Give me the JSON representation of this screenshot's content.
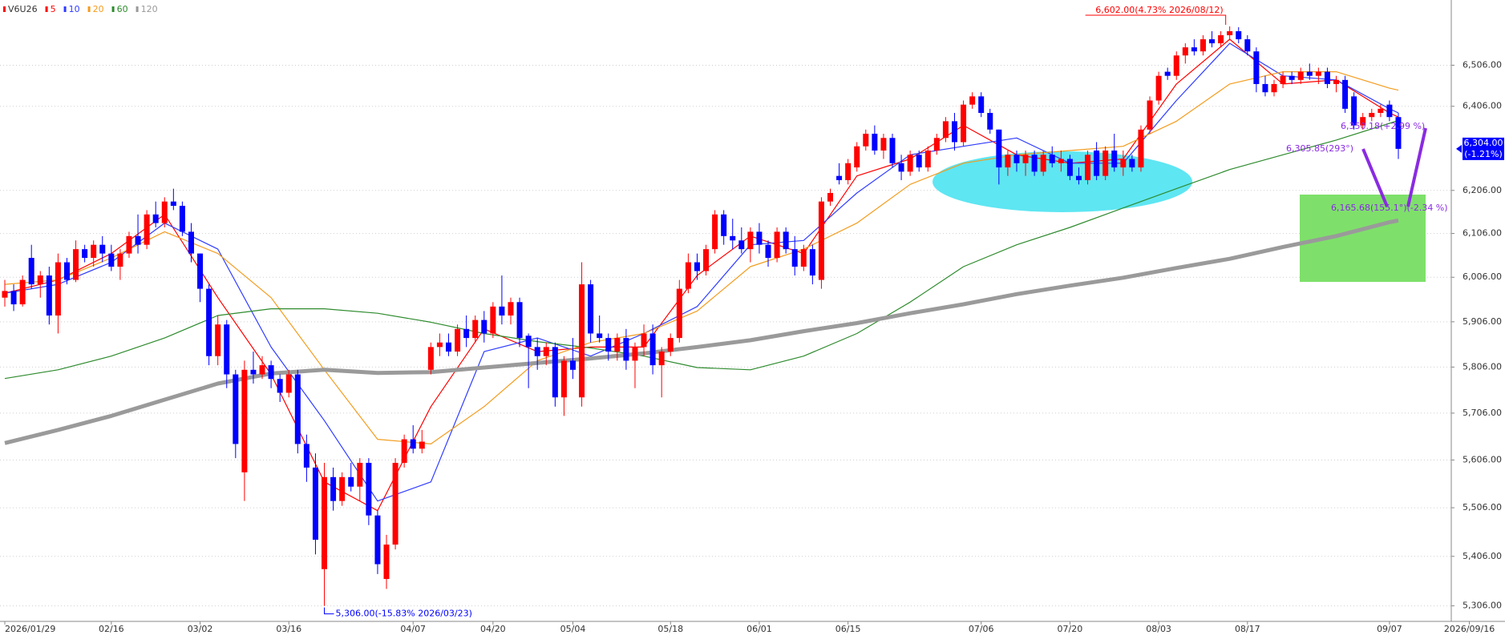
{
  "chart_data": {
    "type": "candlestick",
    "title": "V6U26",
    "title_color": "#ff0000",
    "log_scale": true,
    "grid": true,
    "up_color": "#ff0000",
    "down_color": "#0000ff",
    "ylim": [
      5275,
      6668
    ],
    "yticks": [
      {
        "value": 5306,
        "label": "5,306.00"
      },
      {
        "value": 5406,
        "label": "5,406.00"
      },
      {
        "value": 5506,
        "label": "5,506.00"
      },
      {
        "value": 5606,
        "label": "5,606.00"
      },
      {
        "value": 5706,
        "label": "5,706.00"
      },
      {
        "value": 5806,
        "label": "5,806.00"
      },
      {
        "value": 5906,
        "label": "5,906.00"
      },
      {
        "value": 6006,
        "label": "6,006.00"
      },
      {
        "value": 6106,
        "label": "6,106.00"
      },
      {
        "value": 6206,
        "label": "6,206.00"
      },
      {
        "value": 6406,
        "label": "6,406.00"
      },
      {
        "value": 6506,
        "label": "6,506.00"
      }
    ],
    "categories": [
      "2026/01/29",
      null,
      null,
      null,
      null,
      null,
      null,
      null,
      null,
      null,
      null,
      null,
      "02/16",
      null,
      null,
      null,
      null,
      null,
      null,
      null,
      null,
      null,
      "03/02",
      null,
      null,
      null,
      null,
      null,
      null,
      null,
      null,
      null,
      "03/16",
      null,
      null,
      null,
      null,
      null,
      null,
      null,
      null,
      null,
      null,
      null,
      null,
      null,
      "04/07",
      null,
      null,
      null,
      null,
      null,
      null,
      null,
      null,
      "04/20",
      null,
      null,
      null,
      null,
      null,
      null,
      null,
      null,
      "05/04",
      null,
      null,
      null,
      null,
      null,
      null,
      null,
      null,
      null,
      null,
      "05/18",
      null,
      null,
      null,
      null,
      null,
      null,
      null,
      null,
      null,
      "06/01",
      null,
      null,
      null,
      null,
      null,
      null,
      null,
      null,
      null,
      "06/15",
      null,
      null,
      null,
      null,
      null,
      null,
      null,
      null,
      null,
      null,
      null,
      null,
      null,
      null,
      "07/06",
      null,
      null,
      null,
      null,
      null,
      null,
      null,
      null,
      null,
      "07/20",
      null,
      null,
      null,
      null,
      null,
      null,
      null,
      null,
      null,
      "08/03",
      null,
      null,
      null,
      null,
      null,
      null,
      null,
      null,
      null,
      "08/17",
      null,
      null,
      null,
      null,
      null,
      null,
      null,
      null,
      null,
      null,
      null,
      null,
      null,
      null,
      null,
      "09/07",
      null,
      null,
      null,
      null,
      null,
      null,
      null,
      null,
      "2026/09/16"
    ],
    "open": [
      5960,
      5975,
      5945,
      6050,
      5990,
      6010,
      5920,
      6040,
      6000,
      6070,
      6050,
      6080,
      6060,
      6030,
      6060,
      6100,
      6080,
      6150,
      6130,
      6180,
      6170,
      6110,
      6060,
      5980,
      5830,
      5900,
      5790,
      5580,
      5800,
      5790,
      5810,
      5780,
      5750,
      5790,
      5640,
      5590,
      5380,
      5570,
      5520,
      5570,
      5550,
      5600,
      5490,
      5360,
      5430,
      5600,
      5650,
      5630,
      5800,
      5850,
      5860,
      5840,
      5890,
      5870,
      5910,
      5880,
      5940,
      5920,
      5950,
      5875,
      5850,
      5830,
      5850,
      5740,
      5820,
      5740,
      5990,
      5880,
      5870,
      5840,
      5870,
      5820,
      5850,
      5880,
      5810,
      5840,
      5870,
      5980,
      6040,
      6020,
      6070,
      6150,
      6100,
      6090,
      6070,
      6110,
      6080,
      6050,
      6110,
      6070,
      6030,
      6070,
      6000,
      6180,
      6240,
      6230,
      6260,
      6310,
      6340,
      6300,
      6330,
      6270,
      6250,
      6290,
      6260,
      6300,
      6330,
      6370,
      6320,
      6410,
      6430,
      6390,
      6350,
      6260,
      6290,
      6270,
      6290,
      6250,
      6290,
      6270,
      6280,
      6240,
      6230,
      6300,
      6240,
      6300,
      6260,
      6280,
      6260,
      6350,
      6420,
      6490,
      6480,
      6530,
      6550,
      6540,
      6570,
      6560,
      6580,
      6590,
      6570,
      6540,
      6460,
      6440,
      6460,
      6480,
      6470,
      6490,
      6480,
      6490,
      6460,
      6470,
      6430,
      6360,
      6380,
      6390,
      6410,
      6380,
      null,
      null,
      null,
      null,
      null,
      null,
      null,
      null
    ],
    "high": [
      6000,
      5990,
      6010,
      6080,
      6020,
      6030,
      6060,
      6050,
      6090,
      6080,
      6090,
      6100,
      6080,
      6070,
      6110,
      6150,
      6160,
      6180,
      6190,
      6210,
      6180,
      6130,
      6060,
      5990,
      5920,
      5910,
      5800,
      5820,
      5840,
      5830,
      5820,
      5790,
      5800,
      5800,
      5660,
      5620,
      5600,
      5590,
      5580,
      5600,
      5610,
      5610,
      5500,
      5450,
      5610,
      5660,
      5680,
      5670,
      5860,
      5880,
      5880,
      5900,
      5920,
      5920,
      5930,
      5950,
      6010,
      5960,
      5960,
      5880,
      5870,
      5860,
      5860,
      5830,
      5870,
      6040,
      6000,
      5920,
      5880,
      5880,
      5890,
      5860,
      5900,
      5900,
      5850,
      5880,
      6000,
      6060,
      6060,
      6080,
      6160,
      6160,
      6140,
      6120,
      6120,
      6130,
      6090,
      6120,
      6120,
      6100,
      6080,
      6080,
      6190,
      6210,
      6270,
      6280,
      6320,
      6350,
      6360,
      6340,
      6340,
      6290,
      6300,
      6300,
      6310,
      6340,
      6380,
      6390,
      6420,
      6440,
      6440,
      6400,
      6350,
      6300,
      6300,
      6300,
      6300,
      6300,
      6310,
      6300,
      6290,
      6260,
      6300,
      6320,
      6310,
      6340,
      6300,
      6290,
      6360,
      6430,
      6490,
      6500,
      6540,
      6560,
      6570,
      6580,
      6590,
      6590,
      6602,
      6600,
      6580,
      6550,
      6480,
      6470,
      6490,
      6490,
      6500,
      6510,
      6500,
      6500,
      6480,
      6480,
      6440,
      6390,
      6400,
      6410,
      6420,
      6390,
      null,
      null,
      null,
      null,
      null,
      null,
      null,
      null
    ],
    "low": [
      5940,
      5930,
      5940,
      5980,
      5960,
      5900,
      5880,
      5990,
      5995,
      6040,
      6030,
      6040,
      6020,
      6000,
      6050,
      6060,
      6070,
      6120,
      6120,
      6160,
      6100,
      6040,
      5950,
      5810,
      5810,
      5760,
      5610,
      5520,
      5770,
      5780,
      5760,
      5730,
      5740,
      5620,
      5560,
      5410,
      5306,
      5500,
      5510,
      5540,
      5520,
      5470,
      5370,
      5340,
      5420,
      5590,
      5620,
      5620,
      5790,
      5830,
      5830,
      5830,
      5850,
      5860,
      5860,
      5870,
      5900,
      5900,
      5850,
      5760,
      5800,
      5810,
      5720,
      5700,
      5780,
      5720,
      5860,
      5860,
      5820,
      5820,
      5800,
      5760,
      5830,
      5790,
      5740,
      5830,
      5860,
      5970,
      6000,
      6010,
      6060,
      6080,
      6070,
      6060,
      6040,
      6060,
      6030,
      6040,
      6060,
      6010,
      6020,
      5990,
      5980,
      6170,
      6220,
      6220,
      6250,
      6300,
      6290,
      6280,
      6260,
      6230,
      6240,
      6250,
      6250,
      6290,
      6320,
      6300,
      6310,
      6400,
      6380,
      6340,
      6220,
      6240,
      6250,
      6240,
      6240,
      6240,
      6260,
      6250,
      6230,
      6220,
      6220,
      6230,
      6230,
      6250,
      6240,
      6250,
      6250,
      6340,
      6410,
      6470,
      6470,
      6510,
      6530,
      6530,
      6550,
      6550,
      6570,
      6560,
      6530,
      6440,
      6430,
      6430,
      6450,
      6460,
      6460,
      6470,
      6460,
      6450,
      6440,
      6390,
      6350,
      6350,
      6370,
      6380,
      6370,
      6280,
      null,
      null,
      null,
      null,
      null,
      null,
      null,
      null
    ],
    "close": [
      5975,
      5945,
      6000,
      5990,
      6010,
      5920,
      6040,
      6000,
      6070,
      6050,
      6080,
      6060,
      6030,
      6060,
      6100,
      6080,
      6150,
      6130,
      6180,
      6170,
      6110,
      6060,
      5980,
      5830,
      5900,
      5790,
      5640,
      5800,
      5790,
      5810,
      5780,
      5750,
      5790,
      5640,
      5590,
      5440,
      5570,
      5520,
      5570,
      5550,
      5600,
      5490,
      5390,
      5430,
      5600,
      5650,
      5630,
      5645,
      5850,
      5860,
      5840,
      5890,
      5870,
      5910,
      5880,
      5940,
      5920,
      5950,
      5870,
      5850,
      5830,
      5850,
      5740,
      5820,
      5800,
      5990,
      5880,
      5870,
      5840,
      5870,
      5820,
      5850,
      5880,
      5810,
      5840,
      5870,
      5980,
      6040,
      6020,
      6070,
      6150,
      6100,
      6090,
      6070,
      6110,
      6080,
      6050,
      6110,
      6070,
      6030,
      6070,
      6010,
      6180,
      6200,
      6230,
      6270,
      6310,
      6340,
      6300,
      6330,
      6270,
      6250,
      6290,
      6260,
      6300,
      6330,
      6370,
      6320,
      6410,
      6430,
      6390,
      6350,
      6260,
      6290,
      6270,
      6290,
      6250,
      6290,
      6270,
      6280,
      6240,
      6230,
      6290,
      6240,
      6300,
      6260,
      6280,
      6260,
      6350,
      6420,
      6480,
      6480,
      6530,
      6550,
      6540,
      6570,
      6560,
      6580,
      6590,
      6570,
      6540,
      6460,
      6440,
      6460,
      6480,
      6470,
      6490,
      6480,
      6490,
      6460,
      6470,
      6400,
      6360,
      6380,
      6390,
      6400,
      6380,
      6304,
      null,
      null,
      null,
      null,
      null,
      null,
      null,
      null
    ],
    "series": [
      {
        "name": "5",
        "color": "#ff0000",
        "line_width": 1.2,
        "x": [
          0,
          6,
          12,
          18,
          24,
          30,
          36,
          42,
          48,
          54,
          60,
          66,
          72,
          78,
          84,
          90,
          96,
          102,
          108,
          114,
          120,
          126,
          132,
          138,
          144,
          150,
          156,
          157
        ],
        "values": [
          5970,
          6000,
          6060,
          6150,
          5960,
          5790,
          5560,
          5500,
          5720,
          5890,
          5840,
          5850,
          5850,
          6010,
          6100,
          6060,
          6240,
          6280,
          6360,
          6290,
          6270,
          6280,
          6460,
          6570,
          6460,
          6470,
          6390,
          6380
        ]
      },
      {
        "name": "10",
        "color": "#2f3cff",
        "line_width": 1.2,
        "x": [
          0,
          6,
          12,
          18,
          24,
          30,
          36,
          42,
          48,
          54,
          60,
          66,
          72,
          78,
          84,
          90,
          96,
          102,
          108,
          114,
          120,
          126,
          132,
          138,
          144,
          150,
          156,
          157
        ],
        "values": [
          5970,
          5990,
          6040,
          6130,
          6070,
          5850,
          5690,
          5520,
          5560,
          5840,
          5870,
          5830,
          5880,
          5940,
          6080,
          6090,
          6200,
          6290,
          6310,
          6330,
          6270,
          6270,
          6420,
          6560,
          6480,
          6470,
          6400,
          6390
        ]
      },
      {
        "name": "20",
        "color": "#f39c1e",
        "line_width": 1.2,
        "x": [
          0,
          6,
          12,
          18,
          24,
          30,
          36,
          42,
          48,
          54,
          60,
          66,
          72,
          78,
          84,
          90,
          96,
          102,
          108,
          114,
          120,
          126,
          132,
          138,
          144,
          150,
          156,
          157
        ],
        "values": [
          5990,
          6000,
          6050,
          6110,
          6060,
          5960,
          5800,
          5650,
          5640,
          5720,
          5820,
          5860,
          5880,
          5930,
          6030,
          6070,
          6130,
          6220,
          6270,
          6290,
          6300,
          6310,
          6370,
          6460,
          6490,
          6490,
          6450,
          6445
        ]
      },
      {
        "name": "60",
        "color": "#2e8b2e",
        "line_width": 1.2,
        "x": [
          0,
          6,
          12,
          18,
          24,
          30,
          36,
          42,
          48,
          54,
          60,
          66,
          72,
          78,
          84,
          90,
          96,
          102,
          108,
          114,
          120,
          126,
          132,
          138,
          144,
          150,
          156,
          157
        ],
        "values": [
          5781,
          5800,
          5830,
          5870,
          5920,
          5935,
          5935,
          5925,
          5905,
          5880,
          5862,
          5848,
          5830,
          5805,
          5800,
          5830,
          5880,
          5950,
          6030,
          6080,
          6120,
          6165,
          6210,
          6255,
          6290,
          6325,
          6365,
          6372
        ]
      },
      {
        "name": "120",
        "color": "#9a9a9a",
        "line_width": 5,
        "x": [
          0,
          6,
          12,
          18,
          24,
          30,
          36,
          42,
          48,
          54,
          60,
          66,
          72,
          78,
          84,
          90,
          96,
          102,
          108,
          114,
          120,
          126,
          132,
          138,
          144,
          150,
          156,
          157
        ],
        "values": [
          5642,
          5670,
          5700,
          5735,
          5770,
          5792,
          5800,
          5793,
          5795,
          5805,
          5815,
          5825,
          5836,
          5850,
          5865,
          5885,
          5903,
          5925,
          5945,
          5968,
          5987,
          6005,
          6027,
          6048,
          6075,
          6100,
          6132,
          6136
        ]
      }
    ],
    "annotations": {
      "max_label": "6,602.00(4.73% 2026/08/12)",
      "min_label": "5,306.00(-15.83% 2026/03/23)",
      "last_price": "6,304.00",
      "last_change": "(-1.21%)",
      "angle_label": "6,305.85(293°)",
      "upper_label": "6,350.18(+2.99 %)",
      "lower_label": "6,165.68(155.1°)(-2.34 %)"
    }
  }
}
